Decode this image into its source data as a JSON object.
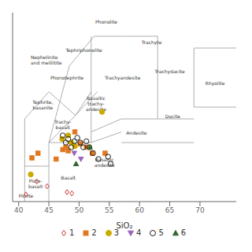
{
  "chart_data": {
    "type": "scatter",
    "xlabel": "SiO₂",
    "xlim": [
      39,
      76
    ],
    "ylim": [
      0,
      16
    ],
    "xticks": [
      40,
      45,
      50,
      55,
      60,
      65,
      70
    ],
    "yticks": [],
    "tick_labels": "x",
    "grid": false,
    "legend": "bottom",
    "boundaries": {
      "color": "#999999",
      "segments": [
        {
          "x": [
            41,
            41
          ],
          "y": [
            0,
            7
          ]
        },
        {
          "x": [
            41,
            45
          ],
          "y": [
            3,
            3
          ]
        },
        {
          "x": [
            45,
            45
          ],
          "y": [
            0,
            5
          ]
        },
        {
          "x": [
            45,
            52
          ],
          "y": [
            5,
            5
          ]
        },
        {
          "x": [
            45,
            49.4
          ],
          "y": [
            5,
            7.3
          ]
        },
        {
          "x": [
            49.4,
            52
          ],
          "y": [
            7.3,
            9.3
          ]
        },
        {
          "x": [
            52,
            52
          ],
          "y": [
            5,
            14
          ]
        },
        {
          "x": [
            48.4,
            52.5
          ],
          "y": [
            11.5,
            14
          ]
        },
        {
          "x": [
            52.5,
            57
          ],
          "y": [
            14,
            14
          ]
        },
        {
          "x": [
            57,
            63
          ],
          "y": [
            14,
            14
          ]
        },
        {
          "x": [
            63,
            63
          ],
          "y": [
            7,
            14
          ]
        },
        {
          "x": [
            63,
            69
          ],
          "y": [
            7,
            7
          ]
        },
        {
          "x": [
            69,
            69
          ],
          "y": [
            8,
            13
          ]
        },
        {
          "x": [
            69,
            76
          ],
          "y": [
            8,
            8
          ]
        },
        {
          "x": [
            69,
            76
          ],
          "y": [
            13,
            13
          ]
        },
        {
          "x": [
            45,
            48.4
          ],
          "y": [
            5,
            11.5
          ]
        },
        {
          "x": [
            49.4,
            53
          ],
          "y": [
            7.3,
            9.3
          ]
        },
        {
          "x": [
            52,
            57
          ],
          "y": [
            5.9,
            7
          ]
        },
        {
          "x": [
            57,
            63
          ],
          "y": [
            7,
            7
          ]
        },
        {
          "x": [
            52,
            57
          ],
          "y": [
            5,
            5.9
          ]
        },
        {
          "x": [
            57,
            63
          ],
          "y": [
            5,
            5
          ]
        },
        {
          "x": [
            63,
            69
          ],
          "y": [
            5,
            5
          ]
        },
        {
          "x": [
            41,
            45
          ],
          "y": [
            7,
            9.3
          ]
        },
        {
          "x": [
            45,
            49.4
          ],
          "y": [
            9.3,
            7.3
          ]
        }
      ]
    },
    "series": [
      {
        "name": "1",
        "marker": "open_diamond",
        "color": "#cc3333",
        "x": [
          41.2,
          43.0,
          44.7,
          48.0,
          48.8
        ],
        "y": [
          0.6,
          1.7,
          1.3,
          0.8,
          0.7
        ]
      },
      {
        "name": "2",
        "marker": "square",
        "color": "#e07820",
        "x": [
          42.2,
          43.2,
          46.2,
          47.3,
          47.8,
          48.2,
          49.3,
          50.2,
          51.2,
          54.3,
          52.2
        ],
        "y": [
          3.7,
          4.1,
          3.6,
          4.4,
          4.6,
          4.3,
          5.9,
          4.9,
          4.6,
          4.1,
          4.1
        ]
      },
      {
        "name": "3",
        "marker": "circle",
        "color": "#ccaa00",
        "x": [
          42.0,
          47.2,
          48.2,
          48.7,
          49.3,
          53.8
        ],
        "y": [
          2.3,
          5.3,
          5.6,
          5.0,
          4.7,
          7.6
        ]
      },
      {
        "name": "4",
        "marker": "triangle_down",
        "color": "#9966bb",
        "x": [
          49.2,
          50.3
        ],
        "y": [
          4.1,
          3.6
        ]
      },
      {
        "name": "5",
        "marker": "open_circle",
        "color": "#222222",
        "x": [
          47.3,
          47.8,
          48.2,
          48.7,
          49.2,
          49.7,
          50.2,
          50.7,
          51.2,
          51.7,
          52.3,
          53.2,
          54.8,
          55.2
        ],
        "y": [
          5.6,
          5.0,
          5.3,
          4.6,
          5.1,
          5.4,
          5.0,
          4.6,
          5.1,
          4.6,
          4.1,
          3.6,
          3.8,
          3.2
        ]
      },
      {
        "name": "6",
        "marker": "triangle",
        "color": "#336633",
        "x": [
          49.5,
          51.8
        ],
        "y": [
          3.2,
          4.6
        ]
      }
    ],
    "annotations": {
      "color": "#333333",
      "items": [
        {
          "text": "Nephelinite\nand melilitite",
          "x": 42.0,
          "y": 12.0,
          "align": "left"
        },
        {
          "text": "Phonolite",
          "x": 54.5,
          "y": 15.2,
          "align": "center"
        },
        {
          "text": "Tephriphonolite",
          "x": 50.8,
          "y": 12.8,
          "align": "center"
        },
        {
          "text": "Trachyte",
          "x": 62.0,
          "y": 13.5,
          "align": "center"
        },
        {
          "text": "Phonotephrite",
          "x": 48.0,
          "y": 10.5,
          "align": "center"
        },
        {
          "text": "Trachyandesite",
          "x": 57.2,
          "y": 10.5,
          "align": "center"
        },
        {
          "text": "Trachydacite",
          "x": 65.0,
          "y": 11.0,
          "align": "center"
        },
        {
          "text": "Tephrite,\nbasanite",
          "x": 44.0,
          "y": 8.2,
          "align": "center"
        },
        {
          "text": "Basaltic\ntrachy-\nandesite",
          "x": 52.8,
          "y": 8.3,
          "align": "center"
        },
        {
          "text": "Trachy-\nbasalt",
          "x": 47.3,
          "y": 6.5,
          "align": "center"
        },
        {
          "text": "Basaltic\nandesite",
          "x": 54.2,
          "y": 3.3,
          "align": "center"
        },
        {
          "text": "Andesite",
          "x": 59.5,
          "y": 5.8,
          "align": "center"
        },
        {
          "text": "Dacite",
          "x": 65.5,
          "y": 7.2,
          "align": "center"
        },
        {
          "text": "Rhyolite",
          "x": 72.5,
          "y": 10.0,
          "align": "center"
        },
        {
          "text": "Basalt",
          "x": 48.2,
          "y": 2.0,
          "align": "center"
        },
        {
          "text": "Picro-\nbasalt",
          "x": 42.8,
          "y": 1.5,
          "align": "center"
        },
        {
          "text": "Picrite",
          "x": 40.0,
          "y": 0.5,
          "align": "left"
        }
      ]
    }
  }
}
